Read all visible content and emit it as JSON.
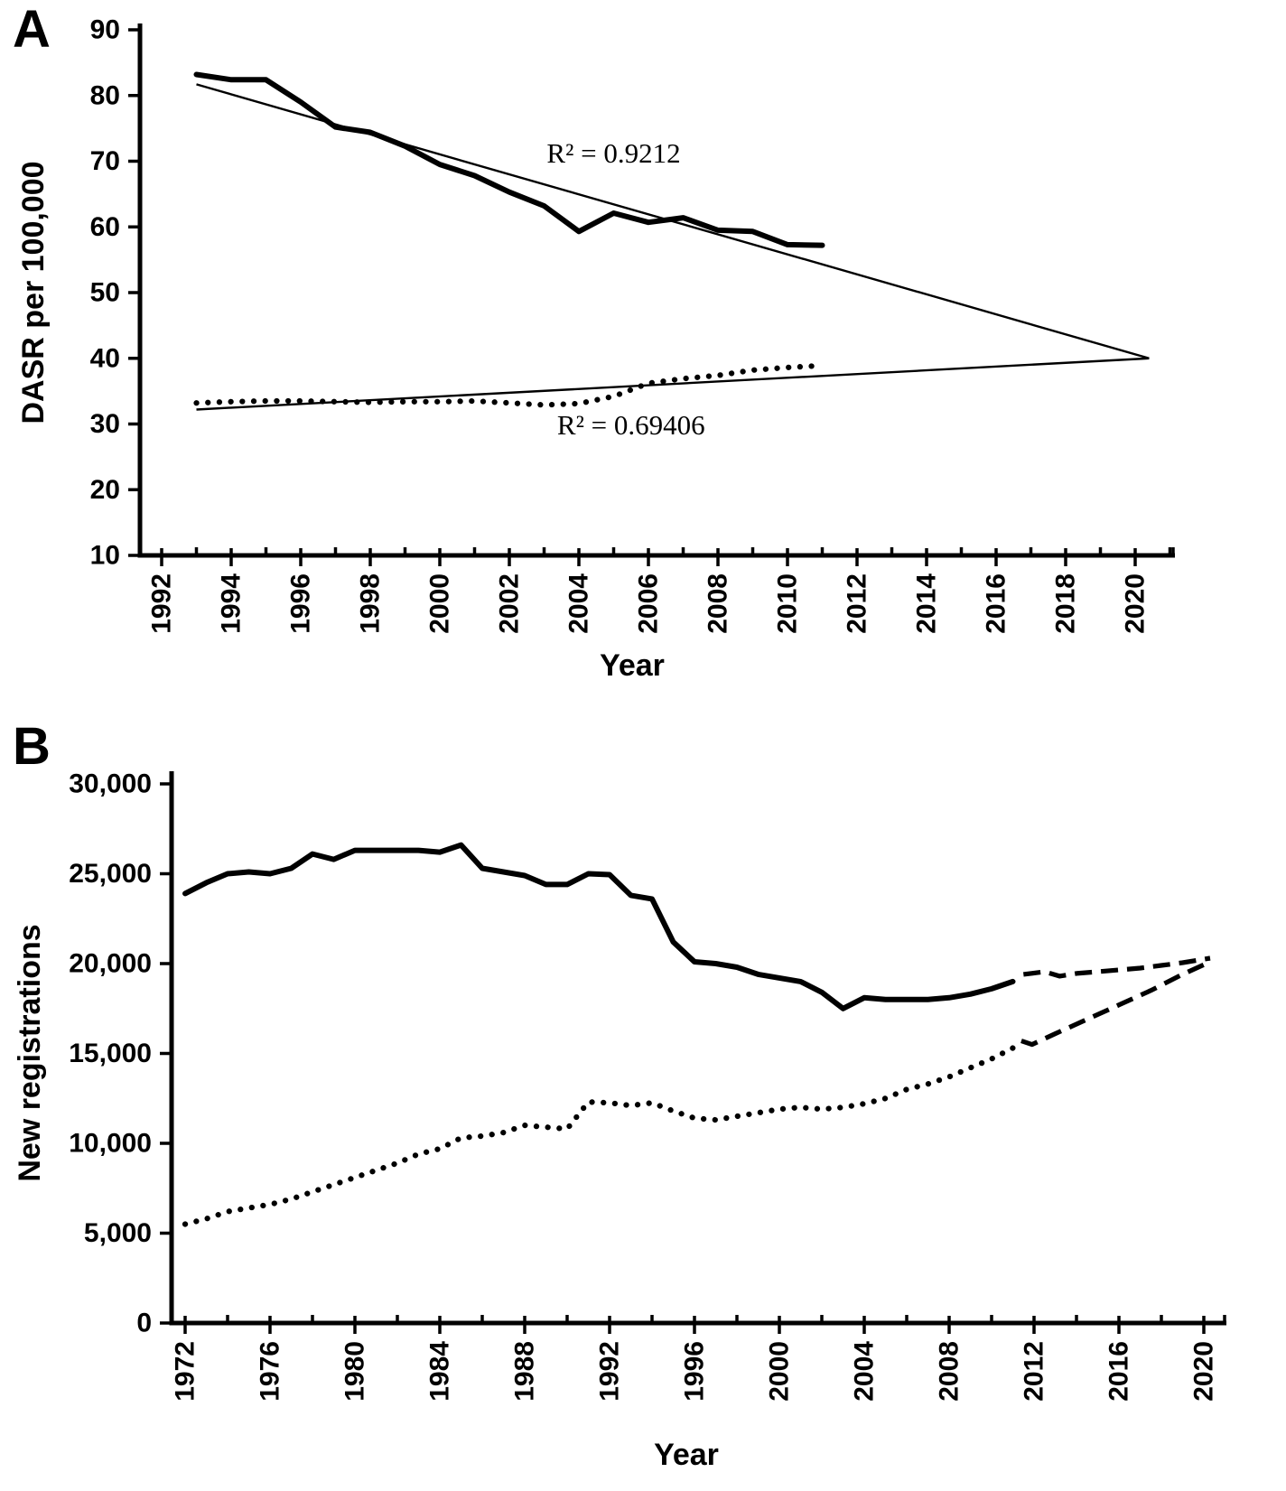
{
  "panels": {
    "a": {
      "corner_label": "A",
      "xlabel": "Year",
      "ylabel": "DASR per 100,000"
    },
    "b": {
      "corner_label": "B",
      "xlabel": "Year",
      "ylabel": "New registrations"
    }
  },
  "chart_data": [
    {
      "type": "line",
      "panel": "A",
      "title": "",
      "xlabel": "Year",
      "ylabel": "DASR per 100,000",
      "xlim": [
        1992,
        2021.3
      ],
      "ylim": [
        10,
        90
      ],
      "grid": false,
      "legend": "none",
      "x_minor_step": 1,
      "x_ticks": {
        "values": [
          1992,
          1994,
          1996,
          1998,
          2000,
          2002,
          2004,
          2006,
          2008,
          2010,
          2012,
          2014,
          2016,
          2018,
          2020
        ],
        "labels": [
          "1992",
          "1994",
          "1996",
          "1998",
          "2000",
          "2002",
          "2004",
          "2006",
          "2008",
          "2010",
          "2012",
          "2014",
          "2016",
          "2018",
          "2020"
        ]
      },
      "y_ticks": {
        "values": [
          10,
          20,
          30,
          40,
          50,
          60,
          70,
          80,
          90
        ],
        "labels": [
          "10",
          "20",
          "30",
          "40",
          "50",
          "60",
          "70",
          "80",
          "90"
        ]
      },
      "annotations": [
        {
          "text": "R² = 0.9212",
          "x": 2005.0,
          "y": 69.8
        },
        {
          "text": "R² = 0.69406",
          "x": 2005.5,
          "y": 28.4
        }
      ],
      "series": [
        {
          "name": "trendline-declining",
          "style": "trend",
          "x": [
            1993,
            2020.4
          ],
          "values": [
            81.7,
            40.0
          ]
        },
        {
          "name": "trendline-rising",
          "style": "trend",
          "x": [
            1993,
            2020.4
          ],
          "values": [
            32.2,
            40.0
          ]
        },
        {
          "name": "observed-upper-solid",
          "style": "data_solid",
          "x": [
            1993,
            1994,
            1995,
            1996,
            1997,
            1998,
            1999,
            2000,
            2001,
            2002,
            2003,
            2004,
            2005,
            2006,
            2007,
            2008,
            2009,
            2010,
            2011
          ],
          "values": [
            83.2,
            82.4,
            82.4,
            79.0,
            75.2,
            74.4,
            72.3,
            69.5,
            67.8,
            65.3,
            63.2,
            59.3,
            62.1,
            60.7,
            61.4,
            59.5,
            59.3,
            57.3,
            57.2
          ]
        },
        {
          "name": "observed-lower-dotted",
          "style": "data_dotted",
          "x": [
            1993,
            1994,
            1995,
            1996,
            1997,
            1998,
            1999,
            2000,
            2001,
            2002,
            2003,
            2004,
            2005,
            2006,
            2007,
            2008,
            2009,
            2010,
            2011
          ],
          "values": [
            33.2,
            33.4,
            33.5,
            33.5,
            33.4,
            33.3,
            33.4,
            33.4,
            33.5,
            33.2,
            32.9,
            33.1,
            34.2,
            36.2,
            36.9,
            37.4,
            38.2,
            38.6,
            38.9
          ]
        }
      ]
    },
    {
      "type": "line",
      "panel": "B",
      "title": "",
      "xlabel": "Year",
      "ylabel": "New registrations",
      "xlim": [
        1972,
        2022
      ],
      "ylim": [
        0,
        30000
      ],
      "grid": false,
      "legend": "none",
      "x_minor_step": 2,
      "x_ticks": {
        "values": [
          1972,
          1976,
          1980,
          1984,
          1988,
          1992,
          1996,
          2000,
          2004,
          2008,
          2012,
          2016,
          2020
        ],
        "labels": [
          "1972",
          "1976",
          "1980",
          "1984",
          "1988",
          "1992",
          "1996",
          "2000",
          "2004",
          "2008",
          "2012",
          "2016",
          "2020"
        ]
      },
      "y_ticks": {
        "values": [
          0,
          5000,
          10000,
          15000,
          20000,
          25000,
          30000
        ],
        "labels": [
          "0",
          "5,000",
          "10,000",
          "15,000",
          "20,000",
          "25,000",
          "30,000"
        ]
      },
      "annotations": [],
      "series": [
        {
          "name": "upper-observed-solid",
          "style": "data_solid",
          "x": [
            1972,
            1973,
            1974,
            1975,
            1976,
            1977,
            1978,
            1979,
            1980,
            1981,
            1982,
            1983,
            1984,
            1985,
            1986,
            1987,
            1988,
            1989,
            1990,
            1991,
            1992,
            1993,
            1994,
            1995,
            1996,
            1997,
            1998,
            1999,
            2000,
            2001,
            2002,
            2003,
            2004,
            2005,
            2006,
            2007,
            2008,
            2009,
            2010,
            2011
          ],
          "values": [
            23900,
            24500,
            25000,
            25100,
            25000,
            25300,
            26100,
            25800,
            26300,
            26300,
            26300,
            26300,
            26200,
            26600,
            25300,
            25100,
            24900,
            24400,
            24400,
            25000,
            24950,
            23800,
            23600,
            21200,
            20100,
            20000,
            19800,
            19400,
            19200,
            19000,
            18400,
            17500,
            18100,
            18000,
            18000,
            18000,
            18100,
            18300,
            18600,
            19000
          ]
        },
        {
          "name": "upper-projection-dashed",
          "style": "proj_dashed",
          "x": [
            2011.5,
            2012.5,
            2013.2,
            2014,
            2015,
            2016,
            2017,
            2018,
            2019,
            2020.3
          ],
          "values": [
            19400,
            19550,
            19300,
            19450,
            19550,
            19650,
            19750,
            19900,
            20050,
            20300
          ]
        },
        {
          "name": "lower-observed-dotted",
          "style": "data_dotted",
          "x": [
            1972,
            1973,
            1974,
            1975,
            1976,
            1977,
            1978,
            1979,
            1980,
            1981,
            1982,
            1983,
            1984,
            1985,
            1986,
            1987,
            1988,
            1989,
            1990,
            1991,
            1992,
            1993,
            1994,
            1995,
            1996,
            1997,
            1998,
            1999,
            2000,
            2001,
            2002,
            2003,
            2004,
            2005,
            2006,
            2007,
            2008,
            2009,
            2010,
            2011
          ],
          "values": [
            5500,
            5800,
            6200,
            6400,
            6600,
            6900,
            7300,
            7700,
            8100,
            8500,
            8900,
            9400,
            9700,
            10300,
            10400,
            10600,
            11000,
            10900,
            10800,
            12300,
            12250,
            12100,
            12250,
            11800,
            11400,
            11300,
            11500,
            11700,
            11900,
            12000,
            11900,
            12000,
            12200,
            12500,
            13000,
            13300,
            13700,
            14200,
            14700,
            15300
          ]
        },
        {
          "name": "lower-projection-dashed",
          "style": "proj_dashed",
          "x": [
            2011.4,
            2011.9,
            2013,
            2014.5,
            2016,
            2017.5,
            2019,
            2020.3
          ],
          "values": [
            15700,
            15500,
            16100,
            16900,
            17700,
            18500,
            19400,
            20100
          ]
        }
      ]
    }
  ]
}
